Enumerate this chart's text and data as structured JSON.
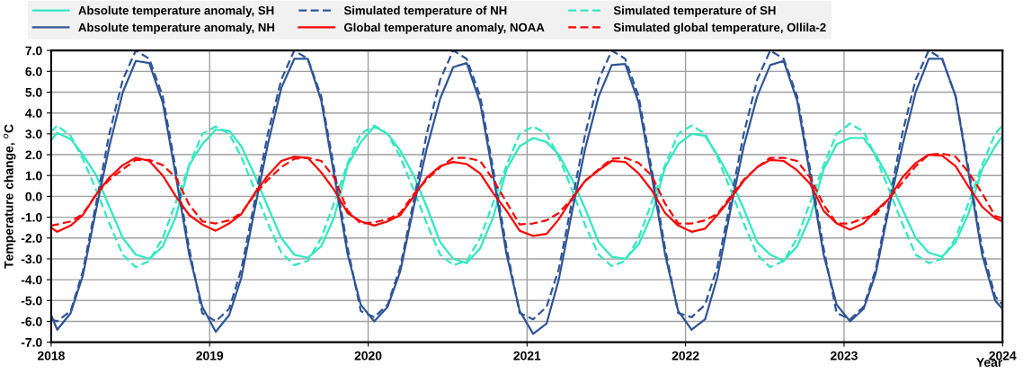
{
  "chart_data": {
    "type": "line",
    "ylabel": "Temperature change, $^{o}$C",
    "xlabel": "Year",
    "x": [
      "2018-01-01",
      "2018-01-15",
      "2018-02-15",
      "2018-03-15",
      "2018-04-15",
      "2018-05-15",
      "2018-06-15",
      "2018-07-15",
      "2018-08-15",
      "2018-09-15",
      "2018-10-15",
      "2018-11-15",
      "2018-12-15",
      "2019-01-15",
      "2019-02-15",
      "2019-03-15",
      "2019-04-15",
      "2019-05-15",
      "2019-06-15",
      "2019-07-15",
      "2019-08-15",
      "2019-09-15",
      "2019-10-15",
      "2019-11-15",
      "2019-12-15",
      "2020-01-15",
      "2020-02-15",
      "2020-03-15",
      "2020-04-15",
      "2020-05-15",
      "2020-06-15",
      "2020-07-15",
      "2020-08-15",
      "2020-09-15",
      "2020-10-15",
      "2020-11-15",
      "2020-12-15",
      "2021-01-15",
      "2021-02-15",
      "2021-03-15",
      "2021-04-15",
      "2021-05-15",
      "2021-06-15",
      "2021-07-15",
      "2021-08-15",
      "2021-09-15",
      "2021-10-15",
      "2021-11-15",
      "2021-12-15",
      "2022-01-15",
      "2022-02-15",
      "2022-03-15",
      "2022-04-15",
      "2022-05-15",
      "2022-06-15",
      "2022-07-15",
      "2022-08-15",
      "2022-09-15",
      "2022-10-15",
      "2022-11-15",
      "2022-12-15",
      "2023-01-15",
      "2023-02-15",
      "2023-03-15",
      "2023-04-15",
      "2023-05-15",
      "2023-06-15",
      "2023-07-15",
      "2023-08-15",
      "2023-09-15",
      "2023-10-15",
      "2023-11-15",
      "2023-12-15",
      "2024-01-01"
    ],
    "series": [
      {
        "name": "Absolute temperature anomaly, SH",
        "color": "#2ee8c0",
        "line_style": "solid",
        "values": [
          2.7,
          3.05,
          2.75,
          2.0,
          1.0,
          -0.5,
          -2.0,
          -2.8,
          -3.0,
          -2.4,
          -1.0,
          1.5,
          2.5,
          3.2,
          3.15,
          2.4,
          1.0,
          -0.5,
          -2.0,
          -2.8,
          -2.95,
          -2.4,
          -1.0,
          1.5,
          2.6,
          3.35,
          3.0,
          2.2,
          1.0,
          -0.5,
          -2.2,
          -3.0,
          -3.2,
          -2.5,
          -1.0,
          1.3,
          2.4,
          2.8,
          2.6,
          2.0,
          0.8,
          -0.6,
          -2.2,
          -2.9,
          -3.0,
          -2.3,
          -0.9,
          1.4,
          2.5,
          3.0,
          2.9,
          2.0,
          0.8,
          -0.6,
          -2.2,
          -2.8,
          -3.1,
          -2.4,
          -1.0,
          1.3,
          2.5,
          2.8,
          2.8,
          2.0,
          0.8,
          -0.6,
          -2.0,
          -2.7,
          -2.9,
          -2.2,
          -0.8,
          1.3,
          2.4,
          2.9
        ]
      },
      {
        "name": "Simulated temperature of NH",
        "color": "#2f5597",
        "line_style": "dashed",
        "values": [
          -5.9,
          -6.0,
          -5.5,
          -3.6,
          -0.3,
          3.0,
          5.6,
          7.0,
          6.6,
          4.8,
          1.3,
          -2.5,
          -5.6,
          -6.0,
          -5.4,
          -3.5,
          -0.2,
          3.0,
          5.6,
          7.0,
          6.6,
          4.8,
          1.3,
          -2.5,
          -5.5,
          -5.8,
          -5.2,
          -3.4,
          -0.2,
          3.0,
          5.6,
          7.0,
          6.6,
          4.8,
          1.3,
          -2.5,
          -5.6,
          -5.9,
          -5.3,
          -3.5,
          -0.2,
          3.0,
          5.6,
          7.0,
          6.6,
          4.8,
          1.3,
          -2.5,
          -5.6,
          -5.8,
          -5.2,
          -3.4,
          -0.2,
          3.0,
          5.6,
          7.0,
          6.6,
          4.8,
          1.3,
          -2.5,
          -5.6,
          -5.9,
          -5.3,
          -3.5,
          -0.2,
          3.0,
          5.6,
          7.0,
          6.6,
          4.8,
          1.3,
          -2.5,
          -4.8,
          -5.2
        ]
      },
      {
        "name": "Simulated temperature of SH",
        "color": "#2ee8c0",
        "line_style": "dashed",
        "values": [
          3.1,
          3.4,
          2.9,
          1.8,
          0.3,
          -1.3,
          -2.8,
          -3.4,
          -3.1,
          -2.0,
          -0.3,
          1.5,
          3.0,
          3.35,
          3.0,
          1.9,
          0.3,
          -1.3,
          -2.7,
          -3.3,
          -3.1,
          -2.0,
          -0.3,
          1.6,
          3.0,
          3.4,
          3.0,
          1.9,
          0.3,
          -1.3,
          -2.8,
          -3.3,
          -3.1,
          -2.0,
          -0.3,
          1.5,
          3.0,
          3.35,
          3.0,
          1.9,
          0.3,
          -1.4,
          -2.8,
          -3.35,
          -3.1,
          -2.0,
          -0.3,
          1.5,
          3.0,
          3.4,
          3.0,
          1.9,
          0.3,
          -1.3,
          -2.8,
          -3.4,
          -3.1,
          -2.0,
          -0.3,
          1.5,
          3.0,
          3.5,
          3.1,
          1.9,
          0.3,
          -1.3,
          -2.8,
          -3.2,
          -3.0,
          -2.0,
          -0.3,
          1.5,
          3.0,
          3.4
        ]
      },
      {
        "name": "Absolute temperature anomaly, NH",
        "color": "#2f5597",
        "line_style": "solid",
        "values": [
          -5.7,
          -6.4,
          -5.6,
          -3.8,
          -0.6,
          2.4,
          5.0,
          6.5,
          6.4,
          4.5,
          1.0,
          -2.8,
          -5.3,
          -6.5,
          -5.7,
          -3.9,
          -0.6,
          2.5,
          5.2,
          6.6,
          6.6,
          4.6,
          1.0,
          -2.8,
          -5.2,
          -6.0,
          -5.3,
          -3.6,
          -0.5,
          2.3,
          4.7,
          6.2,
          6.4,
          4.5,
          1.0,
          -2.8,
          -5.5,
          -6.6,
          -6.1,
          -4.0,
          -0.7,
          2.3,
          4.8,
          6.3,
          6.35,
          4.5,
          1.0,
          -2.8,
          -5.5,
          -6.4,
          -5.9,
          -3.9,
          -0.6,
          2.4,
          4.8,
          6.3,
          6.5,
          4.6,
          1.0,
          -2.8,
          -5.2,
          -6.0,
          -5.4,
          -3.7,
          -0.5,
          2.4,
          5.0,
          6.6,
          6.6,
          4.8,
          1.1,
          -2.8,
          -5.0,
          -5.4
        ]
      },
      {
        "name": "Global temperature anomaly, NOAA",
        "color": "#ff0000",
        "line_style": "solid",
        "values": [
          -1.5,
          -1.7,
          -1.4,
          -0.9,
          0.1,
          0.9,
          1.5,
          1.85,
          1.7,
          1.0,
          0.0,
          -0.9,
          -1.35,
          -1.65,
          -1.3,
          -0.85,
          0.15,
          1.0,
          1.7,
          1.9,
          1.85,
          1.15,
          0.3,
          -0.8,
          -1.2,
          -1.4,
          -1.2,
          -0.9,
          0.0,
          0.9,
          1.45,
          1.65,
          1.55,
          1.1,
          0.15,
          -0.7,
          -1.65,
          -1.9,
          -1.8,
          -1.1,
          -0.1,
          0.75,
          1.25,
          1.7,
          1.65,
          1.1,
          0.3,
          -0.8,
          -1.4,
          -1.7,
          -1.55,
          -0.9,
          -0.1,
          0.75,
          1.4,
          1.75,
          1.7,
          1.25,
          0.6,
          -0.7,
          -1.3,
          -1.6,
          -1.3,
          -0.7,
          -0.1,
          0.9,
          1.6,
          2.0,
          1.95,
          1.45,
          0.45,
          -0.5,
          -1.05,
          -1.2
        ]
      },
      {
        "name": "Simulated global temperature, Ollila-2",
        "color": "#ff0000",
        "line_style": "dashed",
        "values": [
          -1.4,
          -1.35,
          -1.2,
          -0.85,
          0.1,
          0.8,
          1.3,
          1.75,
          1.75,
          1.5,
          0.9,
          -0.4,
          -1.2,
          -1.3,
          -1.15,
          -0.8,
          0.1,
          0.8,
          1.4,
          1.8,
          1.85,
          1.7,
          0.9,
          -0.7,
          -1.3,
          -1.25,
          -1.1,
          -0.8,
          0.1,
          0.8,
          1.4,
          1.85,
          1.85,
          1.7,
          0.8,
          -0.3,
          -1.35,
          -1.3,
          -1.15,
          -0.8,
          -0.1,
          0.75,
          1.3,
          1.8,
          1.85,
          1.6,
          1.0,
          -0.35,
          -1.3,
          -1.3,
          -1.15,
          -0.85,
          0.0,
          0.8,
          1.4,
          1.85,
          1.85,
          1.7,
          0.9,
          -0.4,
          -1.3,
          -1.3,
          -1.05,
          -0.85,
          -0.1,
          0.65,
          1.45,
          2.0,
          2.05,
          1.9,
          1.15,
          0.15,
          -0.95,
          -1.05
        ]
      }
    ],
    "xlim": [
      "2018-01-01",
      "2024-01-01"
    ],
    "xticks": [
      {
        "value": "2018-01-01",
        "label": "2018"
      },
      {
        "value": "2019-01-01",
        "label": "2019"
      },
      {
        "value": "2020-01-01",
        "label": "2020"
      },
      {
        "value": "2021-01-01",
        "label": "2021"
      },
      {
        "value": "2022-01-01",
        "label": "2022"
      },
      {
        "value": "2023-01-01",
        "label": "2023"
      },
      {
        "value": "2024-01-01",
        "label": "2024"
      }
    ],
    "ylim": [
      -7,
      7
    ],
    "yticks": [
      {
        "value": -7,
        "label": "-7.0"
      },
      {
        "value": -6,
        "label": "-6.0"
      },
      {
        "value": -5,
        "label": "-5.0"
      },
      {
        "value": -4,
        "label": "-4.0"
      },
      {
        "value": -3,
        "label": "-3.0"
      },
      {
        "value": -2,
        "label": "-2.0"
      },
      {
        "value": -1,
        "label": "-1.0"
      },
      {
        "value": 0,
        "label": "0.0"
      },
      {
        "value": 1,
        "label": "1.0"
      },
      {
        "value": 2,
        "label": "2.0"
      },
      {
        "value": 3,
        "label": "3.0"
      },
      {
        "value": 4,
        "label": "4.0"
      },
      {
        "value": 5,
        "label": "5.0"
      },
      {
        "value": 6,
        "label": "6.0"
      },
      {
        "value": 7,
        "label": "7.0"
      }
    ],
    "grid": true,
    "legend": "top",
    "marker": "none"
  }
}
